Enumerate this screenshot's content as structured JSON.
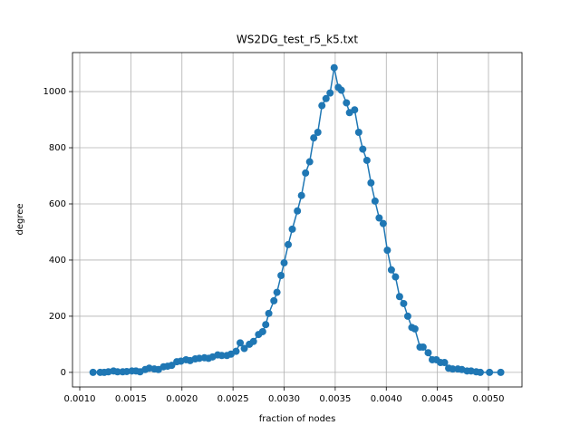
{
  "chart_data": {
    "type": "line",
    "title": "WS2DG_test_r5_k5.txt",
    "x_label": "fraction of nodes",
    "y_label": "degree",
    "x": [
      0.00113,
      0.0012,
      0.00124,
      0.00128,
      0.00133,
      0.00137,
      0.00142,
      0.00146,
      0.00151,
      0.00155,
      0.00159,
      0.00164,
      0.00168,
      0.00173,
      0.00177,
      0.00182,
      0.00186,
      0.0019,
      0.00195,
      0.00199,
      0.00204,
      0.00208,
      0.00213,
      0.00217,
      0.00222,
      0.00226,
      0.0023,
      0.00235,
      0.00239,
      0.00244,
      0.00248,
      0.00253,
      0.00257,
      0.00261,
      0.00266,
      0.0027,
      0.00275,
      0.00279,
      0.00282,
      0.00285,
      0.0029,
      0.00293,
      0.00297,
      0.003,
      0.00304,
      0.00308,
      0.00313,
      0.00317,
      0.00321,
      0.00325,
      0.00329,
      0.00333,
      0.00337,
      0.00341,
      0.00345,
      0.00349,
      0.00353,
      0.00356,
      0.00361,
      0.00364,
      0.00369,
      0.00373,
      0.00377,
      0.00381,
      0.00385,
      0.00389,
      0.00393,
      0.00397,
      0.00401,
      0.00405,
      0.00409,
      0.00413,
      0.00417,
      0.00421,
      0.00425,
      0.00428,
      0.00433,
      0.00436,
      0.00441,
      0.00445,
      0.00449,
      0.00453,
      0.00457,
      0.00461,
      0.00465,
      0.0047,
      0.00474,
      0.00479,
      0.00483,
      0.00488,
      0.00492,
      0.00501,
      0.00512
    ],
    "series": [
      {
        "color": "#1f77b4",
        "values": [
          0,
          0,
          0,
          2,
          5,
          2,
          2,
          3,
          5,
          5,
          2,
          10,
          15,
          12,
          10,
          20,
          22,
          25,
          38,
          40,
          45,
          42,
          48,
          50,
          52,
          50,
          55,
          62,
          60,
          60,
          65,
          75,
          105,
          85,
          100,
          110,
          135,
          145,
          170,
          210,
          255,
          285,
          345,
          390,
          455,
          510,
          575,
          630,
          710,
          750,
          835,
          855,
          950,
          975,
          995,
          1085,
          1015,
          1005,
          960,
          925,
          935,
          855,
          795,
          755,
          675,
          610,
          550,
          530,
          435,
          365,
          340,
          270,
          245,
          200,
          160,
          155,
          90,
          90,
          70,
          45,
          45,
          35,
          35,
          15,
          12,
          12,
          10,
          5,
          5,
          2,
          0,
          0,
          0
        ]
      }
    ],
    "xlim": [
      0.000929,
      0.005328
    ],
    "ylim": [
      -52,
      1139
    ],
    "xticks": [
      {
        "value": 0.001,
        "label": "0.0010"
      },
      {
        "value": 0.0015,
        "label": "0.0015"
      },
      {
        "value": 0.002,
        "label": "0.0020"
      },
      {
        "value": 0.0025,
        "label": "0.0025"
      },
      {
        "value": 0.003,
        "label": "0.0030"
      },
      {
        "value": 0.0035,
        "label": "0.0035"
      },
      {
        "value": 0.004,
        "label": "0.0040"
      },
      {
        "value": 0.0045,
        "label": "0.0045"
      },
      {
        "value": 0.005,
        "label": "0.0050"
      }
    ],
    "yticks": [
      0,
      200,
      400,
      600,
      800,
      1000
    ],
    "grid": true
  }
}
